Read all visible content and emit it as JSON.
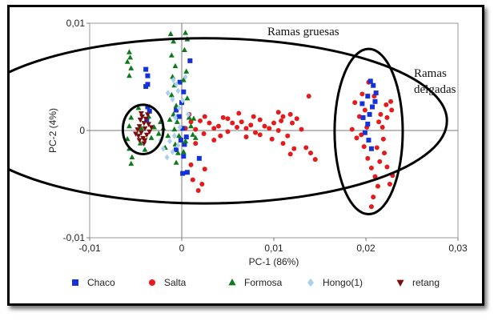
{
  "chart_data": {
    "type": "scatter",
    "title": "",
    "xlabel": "PC-1 (86%)",
    "ylabel": "PC-2 (4%)",
    "xlim": [
      -0.01,
      0.03
    ],
    "ylim": [
      -0.01,
      0.01
    ],
    "x_ticks": [
      -0.01,
      0,
      0.01,
      0.02,
      0.03
    ],
    "y_ticks": [
      -0.01,
      0,
      0.01
    ],
    "x_tick_labels": [
      "-0,01",
      "0",
      "0,01",
      "0,02",
      "0,03"
    ],
    "y_tick_labels": [
      "-0,01",
      "0",
      "0,01"
    ],
    "legend_position": "bottom",
    "annotations": [
      {
        "text": "Ramas gruesas",
        "lines": [
          "Ramas gruesas"
        ]
      },
      {
        "text": "Ramas delgadas",
        "lines": [
          "Ramas",
          "delgadas"
        ]
      }
    ],
    "highlight_regions": [
      {
        "name": "ramas-gruesas",
        "center": [
          0.0025,
          0.0009
        ],
        "radius": [
          0.0263,
          0.0077
        ]
      },
      {
        "name": "retang-cluster",
        "center": [
          -0.0042,
          0.0001
        ],
        "radius": [
          0.0022,
          0.0023
        ]
      },
      {
        "name": "ramas-delgadas",
        "center": [
          0.0203,
          -0.0001
        ],
        "radius": [
          0.0037,
          0.0077
        ]
      }
    ],
    "series": [
      {
        "name": "Chaco",
        "marker": "square",
        "color": "#1432d6",
        "points": [
          [
            -0.0039,
            0.0057
          ],
          [
            -0.0037,
            0.0051
          ],
          [
            -0.0037,
            0.0043
          ],
          [
            -0.0039,
            0.0041
          ],
          [
            -0.0037,
            0.0022
          ],
          [
            -0.0038,
            0.001
          ],
          [
            -0.0035,
            0.0018
          ],
          [
            0.0009,
            0.0065
          ],
          [
            -0.0002,
            0.0045
          ],
          [
            0.0002,
            0.0036
          ],
          [
            0.0,
            0.0026
          ],
          [
            -0.0003,
            0.0013
          ],
          [
            0.0001,
            0.0002
          ],
          [
            -0.0001,
            -0.0009
          ],
          [
            0.0003,
            -0.0013
          ],
          [
            -0.0006,
            -0.0018
          ],
          [
            0.0002,
            -0.0024
          ],
          [
            0.0006,
            -0.0039
          ],
          [
            0.0019,
            -0.0026
          ],
          [
            0.0005,
            -0.0006
          ],
          [
            -0.0006,
            0.0019
          ],
          [
            0.0001,
            -0.004
          ],
          [
            0.0205,
            0.0046
          ],
          [
            0.0208,
            0.0042
          ],
          [
            0.0202,
            0.0032
          ],
          [
            0.021,
            0.0027
          ],
          [
            0.0207,
            0.0022
          ],
          [
            0.0204,
            0.0015
          ],
          [
            0.0202,
            0.0006
          ],
          [
            0.0199,
            -0.0002
          ],
          [
            0.0203,
            -0.0009
          ],
          [
            0.0206,
            -0.0017
          ],
          [
            0.0197,
            0.0012
          ],
          [
            0.0196,
            0.0025
          ],
          [
            0.0211,
            0.0035
          ]
        ]
      },
      {
        "name": "Salta",
        "marker": "circle",
        "color": "#e41a1c",
        "points": [
          [
            0.0004,
            0.0002
          ],
          [
            0.001,
            0.0008
          ],
          [
            0.0015,
            0.0001
          ],
          [
            0.002,
            0.0009
          ],
          [
            0.0024,
            -0.0003
          ],
          [
            0.003,
            0.0007
          ],
          [
            0.0035,
            0.0002
          ],
          [
            0.004,
            0.0004
          ],
          [
            0.0045,
            0.0012
          ],
          [
            0.005,
            -0.0001
          ],
          [
            0.0055,
            0.0007
          ],
          [
            0.006,
            0.0003
          ],
          [
            0.0065,
            0.0008
          ],
          [
            0.007,
            0.0002
          ],
          [
            0.0075,
            0.0005
          ],
          [
            0.008,
            -0.0002
          ],
          [
            0.0085,
            0.001
          ],
          [
            0.009,
            0.0004
          ],
          [
            0.0095,
            0.0002
          ],
          [
            0.01,
            0.0007
          ],
          [
            0.0105,
            0.0
          ],
          [
            0.011,
            0.0013
          ],
          [
            0.0115,
            -0.0005
          ],
          [
            0.011,
            -0.0012
          ],
          [
            0.0118,
            -0.0022
          ],
          [
            0.012,
            0.0007
          ],
          [
            0.0125,
            0.0011
          ],
          [
            0.013,
            0.0001
          ],
          [
            0.0135,
            -0.0016
          ],
          [
            0.014,
            -0.0021
          ],
          [
            0.0145,
            -0.0027
          ],
          [
            0.0138,
            0.0032
          ],
          [
            0.0118,
            0.0015
          ],
          [
            0.0105,
            0.0017
          ],
          [
            0.0098,
            -0.0008
          ],
          [
            0.0085,
            -0.0004
          ],
          [
            0.0078,
            0.0013
          ],
          [
            0.007,
            -0.0006
          ],
          [
            0.0062,
            0.0016
          ],
          [
            0.005,
            0.0011
          ],
          [
            0.0042,
            -0.0005
          ],
          [
            0.0035,
            -0.0009
          ],
          [
            0.0025,
            0.0013
          ],
          [
            0.0015,
            -0.0012
          ],
          [
            0.0012,
            -0.0046
          ],
          [
            0.0018,
            -0.0056
          ],
          [
            0.0022,
            -0.005
          ],
          [
            0.0025,
            -0.0036
          ],
          [
            0.001,
            -0.0032
          ],
          [
            0.0008,
            0.0015
          ],
          [
            0.0122,
            -0.0017
          ],
          [
            0.0108,
            0.0009
          ],
          [
            0.0185,
            0.0001
          ],
          [
            0.019,
            -0.0007
          ],
          [
            0.0193,
            0.0013
          ],
          [
            0.0188,
            0.0026
          ],
          [
            0.0196,
            0.0034
          ],
          [
            0.0199,
            0.0019
          ],
          [
            0.0201,
            0.0003
          ],
          [
            0.0198,
            -0.0015
          ],
          [
            0.0202,
            -0.0026
          ],
          [
            0.0206,
            -0.0035
          ],
          [
            0.021,
            -0.0043
          ],
          [
            0.0213,
            -0.0052
          ],
          [
            0.0208,
            -0.0062
          ],
          [
            0.0206,
            -0.0071
          ],
          [
            0.0215,
            -0.0029
          ],
          [
            0.022,
            -0.0021
          ],
          [
            0.0223,
            -0.0034
          ],
          [
            0.0226,
            -0.005
          ],
          [
            0.0218,
            0.0003
          ],
          [
            0.0216,
            0.0015
          ],
          [
            0.0222,
            0.0024
          ],
          [
            0.0227,
            0.0027
          ],
          [
            0.0223,
            0.0012
          ],
          [
            0.0228,
            0.0019
          ],
          [
            0.0219,
            -0.0008
          ],
          [
            0.0214,
            0.0008
          ],
          [
            0.0209,
            0.0032
          ],
          [
            0.0212,
            -0.0016
          ],
          [
            0.0229,
            -0.0042
          ],
          [
            0.0203,
            0.0045
          ],
          [
            0.0195,
            -0.0004
          ]
        ]
      },
      {
        "name": "Formosa",
        "marker": "triangle",
        "color": "#0f7a1c",
        "points": [
          [
            -0.0057,
            0.0073
          ],
          [
            -0.0056,
            0.0068
          ],
          [
            -0.0059,
            0.0064
          ],
          [
            -0.0055,
            0.0058
          ],
          [
            -0.0057,
            0.0051
          ],
          [
            -0.0055,
            0.0012
          ],
          [
            -0.0057,
            0.0004
          ],
          [
            -0.0059,
            -0.0008
          ],
          [
            -0.0057,
            -0.0017
          ],
          [
            -0.0054,
            -0.0025
          ],
          [
            -0.0055,
            -0.0031
          ],
          [
            -0.0047,
            0.0021
          ],
          [
            -0.0045,
            -0.0012
          ],
          [
            -0.004,
            -0.0018
          ],
          [
            -0.0044,
            0.0002
          ],
          [
            -0.0012,
            0.009
          ],
          [
            -0.0009,
            0.0083
          ],
          [
            -0.0011,
            0.007
          ],
          [
            -0.0007,
            0.006
          ],
          [
            -0.001,
            0.005
          ],
          [
            -0.0008,
            0.0042
          ],
          [
            -0.0011,
            0.0033
          ],
          [
            -0.0006,
            0.0023
          ],
          [
            -0.0009,
            0.0015
          ],
          [
            -0.0005,
            0.0008
          ],
          [
            -0.0008,
            0.0001
          ],
          [
            -0.0003,
            -0.0005
          ],
          [
            -0.0007,
            -0.0013
          ],
          [
            -0.0004,
            -0.0021
          ],
          [
            -0.0006,
            -0.003
          ],
          [
            0.0004,
            0.0091
          ],
          [
            0.0006,
            0.0085
          ],
          [
            0.0003,
            0.0075
          ],
          [
            0.0005,
            0.0055
          ],
          [
            0.0002,
            0.0047
          ],
          [
            0.0006,
            0.003
          ],
          [
            0.0008,
            0.0012
          ],
          [
            0.001,
            0.0004
          ],
          [
            0.0012,
            -0.0004
          ],
          [
            0.0015,
            -0.0007
          ],
          [
            0.0013,
            0.0011
          ],
          [
            0.0004,
            -0.001
          ],
          [
            0.0002,
            -0.002
          ],
          [
            -0.0015,
            -0.0005
          ],
          [
            -0.0013,
            0.001
          ],
          [
            -0.002,
            0.0002
          ],
          [
            -0.0025,
            -0.0003
          ],
          [
            -0.0018,
            -0.0016
          ],
          [
            -0.0023,
            0.0008
          ],
          [
            -0.003,
            0.0003
          ],
          [
            -0.0033,
            -0.0007
          ],
          [
            -0.0036,
            0.0013
          ]
        ]
      },
      {
        "name": "Hongo(1)",
        "marker": "diamond",
        "color": "#a9d0ee",
        "points": [
          [
            -0.0009,
            0.0047
          ],
          [
            -0.0006,
            0.0043
          ],
          [
            -0.0004,
            0.0037
          ],
          [
            -0.001,
            0.0029
          ],
          [
            -0.0003,
            0.0021
          ],
          [
            -0.0007,
            0.0012
          ],
          [
            -0.0002,
            0.0003
          ],
          [
            -0.0008,
            -0.0005
          ],
          [
            -0.0004,
            -0.0014
          ],
          [
            -0.001,
            -0.002
          ],
          [
            -0.0016,
            -0.0025
          ],
          [
            -0.002,
            -0.0017
          ],
          [
            -0.0013,
            -0.001
          ],
          [
            0.0004,
            0.005
          ],
          [
            0.0007,
            0.0015
          ],
          [
            -0.0023,
            -0.0009
          ],
          [
            -0.0015,
            0.0035
          ],
          [
            0.0001,
            0.0028
          ]
        ]
      },
      {
        "name": "retang",
        "marker": "triangle-down",
        "color": "#7a0f0f",
        "points": [
          [
            -0.0045,
            0.001
          ],
          [
            -0.0043,
            0.0013
          ],
          [
            -0.0041,
            0.0007
          ],
          [
            -0.0046,
            0.0004
          ],
          [
            -0.004,
            0.0002
          ],
          [
            -0.0044,
            -0.0002
          ],
          [
            -0.0038,
            -0.0004
          ],
          [
            -0.0042,
            -0.0007
          ],
          [
            -0.0046,
            -0.0009
          ],
          [
            -0.0036,
            0.0006
          ],
          [
            -0.0039,
            0.0011
          ],
          [
            -0.0035,
            -0.0001
          ],
          [
            -0.0048,
            0.0001
          ],
          [
            -0.0047,
            -0.0005
          ],
          [
            -0.0041,
            -0.0012
          ],
          [
            -0.0037,
            0.0015
          ],
          [
            -0.005,
            -0.0003
          ],
          [
            -0.0044,
            0.0016
          ],
          [
            -0.0033,
            0.0003
          ],
          [
            -0.004,
            -0.0009
          ]
        ]
      }
    ]
  }
}
